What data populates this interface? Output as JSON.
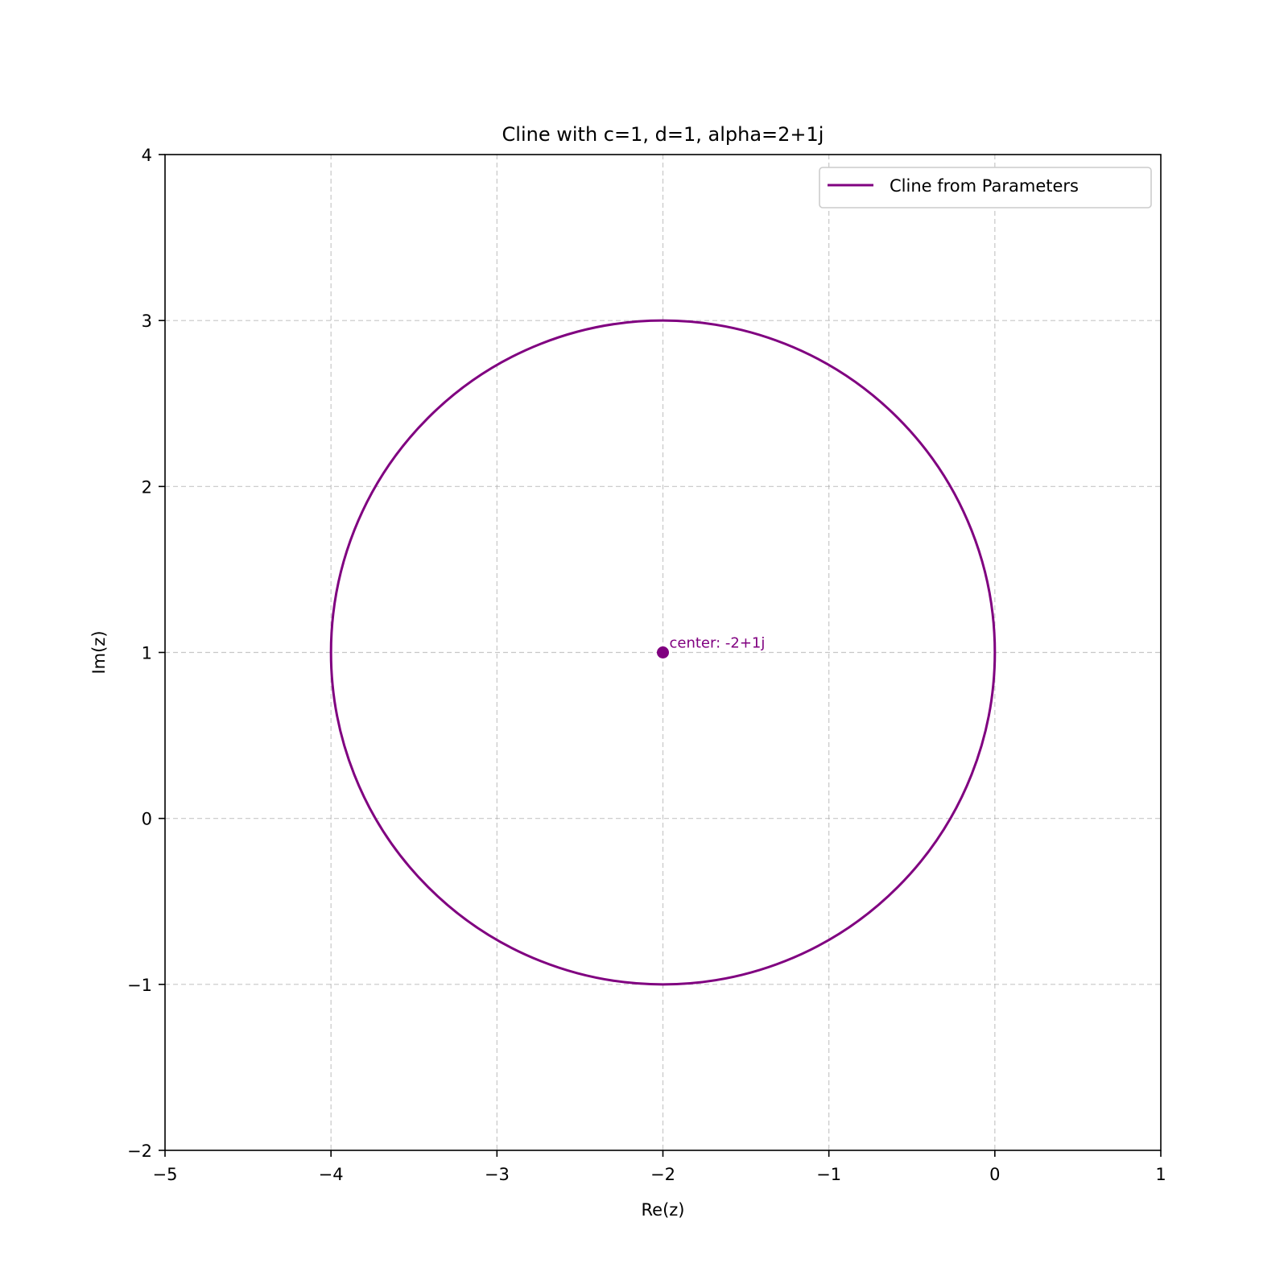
{
  "chart_data": {
    "type": "line",
    "title": "Cline with c=1, d=1, alpha=2+1j",
    "xlabel": "Re(z)",
    "ylabel": "Im(z)",
    "xlim": [
      -5,
      1
    ],
    "ylim": [
      -2,
      4
    ],
    "xticks": [
      -5,
      -4,
      -3,
      -2,
      -1,
      0,
      1
    ],
    "yticks": [
      -2,
      -1,
      0,
      1,
      2,
      3,
      4
    ],
    "xtick_labels": [
      "−5",
      "−4",
      "−3",
      "−2",
      "−1",
      "0",
      "1"
    ],
    "ytick_labels": [
      "−2",
      "−1",
      "0",
      "1",
      "2",
      "3",
      "4"
    ],
    "grid": true,
    "legend_position": "top-right",
    "series": [
      {
        "name": "Cline from Parameters",
        "shape": "circle",
        "center": [
          -2,
          1
        ],
        "radius": 2,
        "color": "#800080"
      }
    ],
    "points": [
      {
        "x": -2,
        "y": 1,
        "label": "center: -2+1j",
        "color": "#800080"
      }
    ]
  }
}
